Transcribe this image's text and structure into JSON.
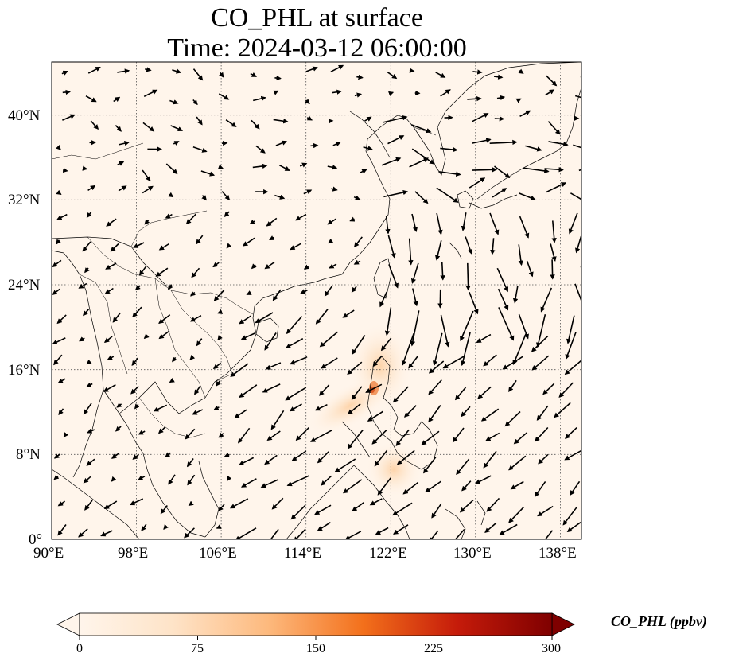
{
  "title": {
    "line1": "CO_PHL at surface",
    "line2": "Time: 2024-03-12 06:00:00"
  },
  "map": {
    "lon_range": [
      90,
      140
    ],
    "lat_range": [
      0,
      45
    ],
    "lon_ticks": [
      "90°E",
      "98°E",
      "106°E",
      "114°E",
      "122°E",
      "130°E",
      "138°E"
    ],
    "lat_ticks": [
      "0°",
      "8°N",
      "16°N",
      "24°N",
      "32°N",
      "40°N"
    ],
    "gridlines": true,
    "background_color": "#fff5eb",
    "overlay": "wind vectors",
    "hotspot": {
      "lon": 120.6,
      "lat": 14.6,
      "description_color": "#e3572a"
    }
  },
  "colorbar": {
    "label": "CO_PHL (ppbv)",
    "ticks": [
      "0",
      "75",
      "150",
      "225",
      "300"
    ],
    "range": [
      0,
      300
    ],
    "colormap": "OrRd",
    "colors": [
      "#fff5eb",
      "#fdd9b4",
      "#fda762",
      "#f3701b",
      "#c54102",
      "#7f2704"
    ],
    "extend": "both"
  }
}
